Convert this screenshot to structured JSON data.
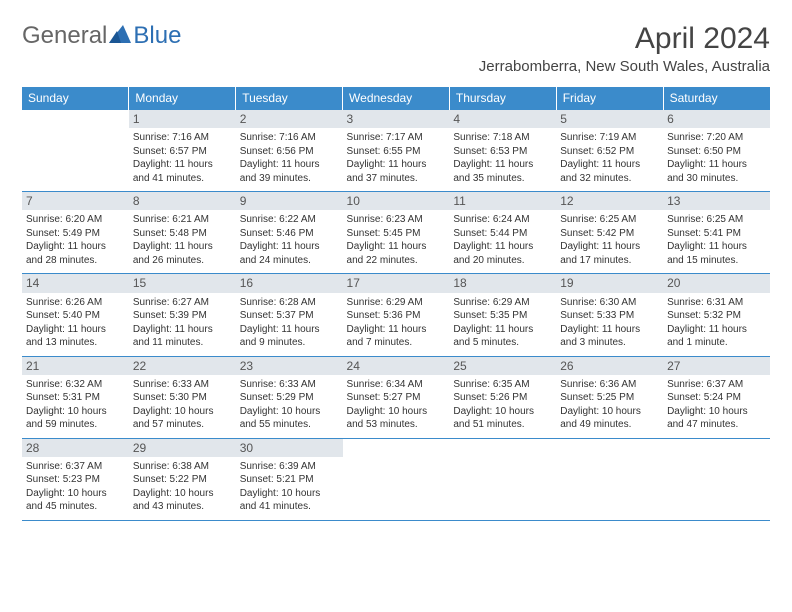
{
  "logo": {
    "part1": "General",
    "part2": "Blue"
  },
  "title": "April 2024",
  "location": "Jerrabomberra, New South Wales, Australia",
  "colors": {
    "header_bg": "#3b8bcb",
    "header_text": "#ffffff",
    "daynum_bg": "#e1e6eb",
    "border": "#3b8bcb",
    "logo_blue": "#2d6fb3",
    "logo_grey": "#666666"
  },
  "layout": {
    "columns": 7,
    "rows": 5,
    "first_day_column_index": 1
  },
  "day_headers": [
    "Sunday",
    "Monday",
    "Tuesday",
    "Wednesday",
    "Thursday",
    "Friday",
    "Saturday"
  ],
  "days": [
    {
      "n": 1,
      "sunrise": "7:16 AM",
      "sunset": "6:57 PM",
      "daylight": "11 hours and 41 minutes."
    },
    {
      "n": 2,
      "sunrise": "7:16 AM",
      "sunset": "6:56 PM",
      "daylight": "11 hours and 39 minutes."
    },
    {
      "n": 3,
      "sunrise": "7:17 AM",
      "sunset": "6:55 PM",
      "daylight": "11 hours and 37 minutes."
    },
    {
      "n": 4,
      "sunrise": "7:18 AM",
      "sunset": "6:53 PM",
      "daylight": "11 hours and 35 minutes."
    },
    {
      "n": 5,
      "sunrise": "7:19 AM",
      "sunset": "6:52 PM",
      "daylight": "11 hours and 32 minutes."
    },
    {
      "n": 6,
      "sunrise": "7:20 AM",
      "sunset": "6:50 PM",
      "daylight": "11 hours and 30 minutes."
    },
    {
      "n": 7,
      "sunrise": "6:20 AM",
      "sunset": "5:49 PM",
      "daylight": "11 hours and 28 minutes."
    },
    {
      "n": 8,
      "sunrise": "6:21 AM",
      "sunset": "5:48 PM",
      "daylight": "11 hours and 26 minutes."
    },
    {
      "n": 9,
      "sunrise": "6:22 AM",
      "sunset": "5:46 PM",
      "daylight": "11 hours and 24 minutes."
    },
    {
      "n": 10,
      "sunrise": "6:23 AM",
      "sunset": "5:45 PM",
      "daylight": "11 hours and 22 minutes."
    },
    {
      "n": 11,
      "sunrise": "6:24 AM",
      "sunset": "5:44 PM",
      "daylight": "11 hours and 20 minutes."
    },
    {
      "n": 12,
      "sunrise": "6:25 AM",
      "sunset": "5:42 PM",
      "daylight": "11 hours and 17 minutes."
    },
    {
      "n": 13,
      "sunrise": "6:25 AM",
      "sunset": "5:41 PM",
      "daylight": "11 hours and 15 minutes."
    },
    {
      "n": 14,
      "sunrise": "6:26 AM",
      "sunset": "5:40 PM",
      "daylight": "11 hours and 13 minutes."
    },
    {
      "n": 15,
      "sunrise": "6:27 AM",
      "sunset": "5:39 PM",
      "daylight": "11 hours and 11 minutes."
    },
    {
      "n": 16,
      "sunrise": "6:28 AM",
      "sunset": "5:37 PM",
      "daylight": "11 hours and 9 minutes."
    },
    {
      "n": 17,
      "sunrise": "6:29 AM",
      "sunset": "5:36 PM",
      "daylight": "11 hours and 7 minutes."
    },
    {
      "n": 18,
      "sunrise": "6:29 AM",
      "sunset": "5:35 PM",
      "daylight": "11 hours and 5 minutes."
    },
    {
      "n": 19,
      "sunrise": "6:30 AM",
      "sunset": "5:33 PM",
      "daylight": "11 hours and 3 minutes."
    },
    {
      "n": 20,
      "sunrise": "6:31 AM",
      "sunset": "5:32 PM",
      "daylight": "11 hours and 1 minute."
    },
    {
      "n": 21,
      "sunrise": "6:32 AM",
      "sunset": "5:31 PM",
      "daylight": "10 hours and 59 minutes."
    },
    {
      "n": 22,
      "sunrise": "6:33 AM",
      "sunset": "5:30 PM",
      "daylight": "10 hours and 57 minutes."
    },
    {
      "n": 23,
      "sunrise": "6:33 AM",
      "sunset": "5:29 PM",
      "daylight": "10 hours and 55 minutes."
    },
    {
      "n": 24,
      "sunrise": "6:34 AM",
      "sunset": "5:27 PM",
      "daylight": "10 hours and 53 minutes."
    },
    {
      "n": 25,
      "sunrise": "6:35 AM",
      "sunset": "5:26 PM",
      "daylight": "10 hours and 51 minutes."
    },
    {
      "n": 26,
      "sunrise": "6:36 AM",
      "sunset": "5:25 PM",
      "daylight": "10 hours and 49 minutes."
    },
    {
      "n": 27,
      "sunrise": "6:37 AM",
      "sunset": "5:24 PM",
      "daylight": "10 hours and 47 minutes."
    },
    {
      "n": 28,
      "sunrise": "6:37 AM",
      "sunset": "5:23 PM",
      "daylight": "10 hours and 45 minutes."
    },
    {
      "n": 29,
      "sunrise": "6:38 AM",
      "sunset": "5:22 PM",
      "daylight": "10 hours and 43 minutes."
    },
    {
      "n": 30,
      "sunrise": "6:39 AM",
      "sunset": "5:21 PM",
      "daylight": "10 hours and 41 minutes."
    }
  ],
  "labels": {
    "sunrise": "Sunrise: ",
    "sunset": "Sunset: ",
    "daylight": "Daylight: "
  }
}
